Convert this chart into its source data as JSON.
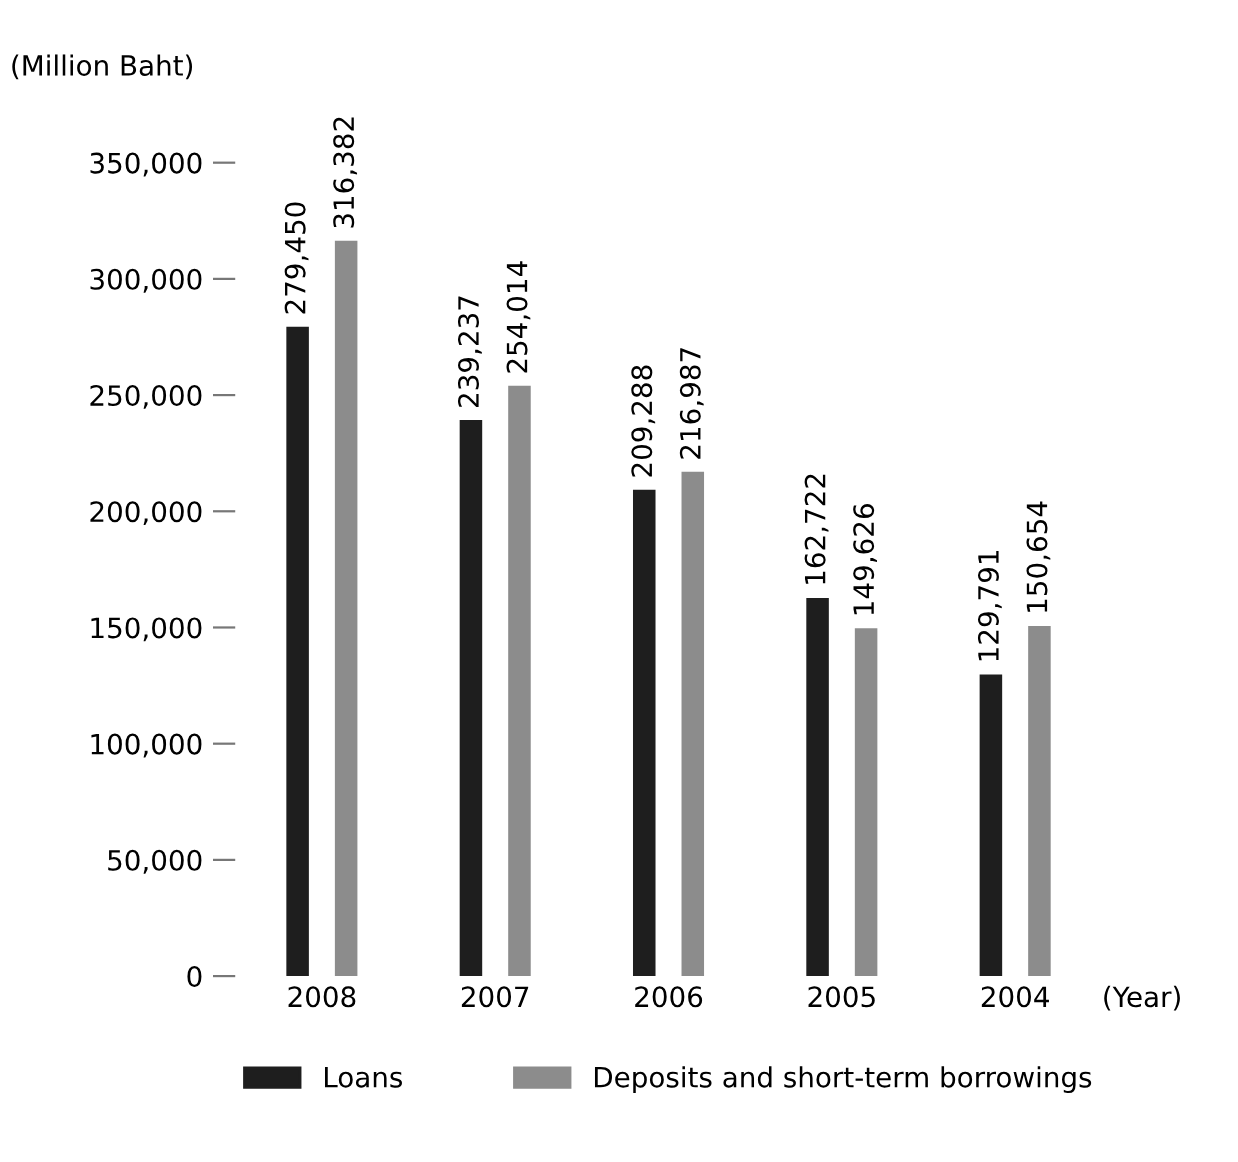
{
  "chart_data": {
    "type": "bar",
    "ylabel": "(Million Baht)",
    "xlabel": "(Year)",
    "categories": [
      "2008",
      "2007",
      "2006",
      "2005",
      "2004"
    ],
    "series": [
      {
        "name": "Loans",
        "color": "#1e1e1e",
        "values": [
          279450,
          239237,
          209288,
          162722,
          129791
        ]
      },
      {
        "name": "Deposits and short-term borrowings",
        "color": "#8c8c8c",
        "values": [
          316382,
          254014,
          216987,
          149626,
          150654
        ]
      }
    ],
    "ylim": [
      0,
      350000
    ],
    "yticks": [
      {
        "value": 0,
        "label": "0"
      },
      {
        "value": 50000,
        "label": "50,000"
      },
      {
        "value": 100000,
        "label": "100,000"
      },
      {
        "value": 150000,
        "label": "150,000"
      },
      {
        "value": 200000,
        "label": "200,000"
      },
      {
        "value": 250000,
        "label": "250,000"
      },
      {
        "value": 300000,
        "label": "300,000"
      },
      {
        "value": 350000,
        "label": "350,000"
      }
    ],
    "value_labels": [
      [
        "279,450",
        "239,237",
        "209,288",
        "162,722",
        "129,791"
      ],
      [
        "316,382",
        "254,014",
        "216,987",
        "149,626",
        "150,654"
      ]
    ],
    "grid": false,
    "legend": "bottom"
  }
}
